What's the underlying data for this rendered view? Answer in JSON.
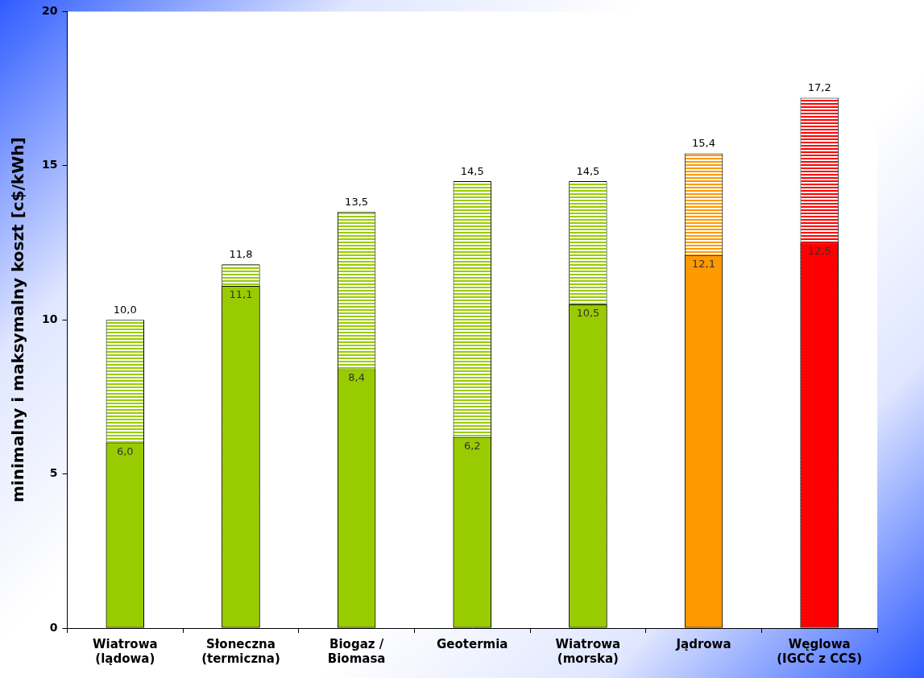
{
  "chart_data": {
    "type": "bar",
    "y_label": "minimalny i maksymalny koszt [c$/kWh]",
    "categories": [
      [
        "Wiatrowa",
        "(lądowa)"
      ],
      [
        "Słoneczna",
        "(termiczna)"
      ],
      [
        "Biogaz /",
        "Biomasa"
      ],
      [
        "Geotermia"
      ],
      [
        "Wiatrowa",
        "(morska)"
      ],
      [
        "Jądrowa"
      ],
      [
        "Węglowa",
        "(IGCC z CCS)"
      ]
    ],
    "series": [
      {
        "values": [
          6.0,
          11.1,
          8.4,
          6.2,
          10.5,
          12.1,
          12.5
        ],
        "value_labels": [
          "6,0",
          "11,1",
          "8,4",
          "6,2",
          "10,5",
          "12,1",
          "12,5"
        ],
        "colors": [
          "#99cc00",
          "#99cc00",
          "#99cc00",
          "#99cc00",
          "#99cc00",
          "#ff9900",
          "#ff0000"
        ]
      },
      {
        "values": [
          10.0,
          11.8,
          13.5,
          14.5,
          14.5,
          15.4,
          17.2
        ],
        "value_labels": [
          "10,0",
          "11,8",
          "13,5",
          "14,5",
          "14,5",
          "15,4",
          "17,2"
        ],
        "colors": [
          "#99cc00",
          "#99cc00",
          "#99cc00",
          "#99cc00",
          "#99cc00",
          "#ff9900",
          "#ff0000"
        ],
        "line_style": "hatched"
      }
    ],
    "ylim": [
      0,
      20
    ],
    "yticks": [
      0,
      5,
      10,
      15,
      20
    ],
    "grid": false,
    "data_labels": true
  }
}
